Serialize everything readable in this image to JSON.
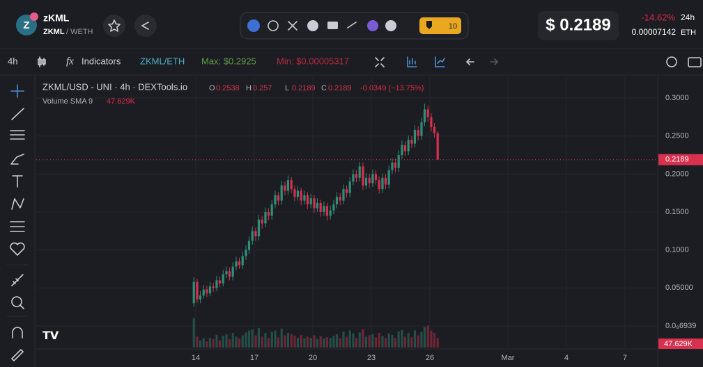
{
  "header": {
    "token": "zKML",
    "pair_base": "ZKML",
    "pair_quote": "/ WETH",
    "badge": "10",
    "price": "$ 0.2189",
    "change": "-14.62%",
    "period": "24h",
    "eth_price": "0.00007142",
    "eth_unit": "ETH"
  },
  "toolbar": {
    "interval": "4h",
    "fx": "fx",
    "indicators": "Indicators",
    "pair": "ZKML/ETH",
    "max": "Max: $0.2925",
    "min": "Min: $0.00005317"
  },
  "chart_data": {
    "type": "candlestick",
    "title": "ZKML/USD - UNI · 4h · DEXTools.io",
    "ohlc_letters": [
      "O",
      "H",
      "L",
      "C"
    ],
    "change_text": "-0.0349 (−13.75%)",
    "volume_label": "Volume SMA 9",
    "volume_sma": "47.629K",
    "up_color": "#2f8f78",
    "down_color": "#d8304f",
    "grid": true,
    "x": [
      -0.1,
      0.07,
      0.23,
      0.4,
      0.57,
      0.73,
      0.9,
      1.07,
      1.23,
      1.4,
      1.57,
      1.73,
      1.9,
      2.07,
      2.23,
      2.4,
      2.57,
      2.73,
      2.9,
      3.07,
      3.23,
      3.4,
      3.57,
      3.73,
      3.9,
      4.07,
      4.23,
      4.4,
      4.57,
      4.73,
      4.9,
      5.07,
      5.23,
      5.4,
      5.57,
      5.73,
      5.9,
      6.07,
      6.23,
      6.4,
      6.57,
      6.73,
      6.9,
      7.07,
      7.23,
      7.4,
      7.57,
      7.73,
      7.9,
      8.07,
      8.23,
      8.4,
      8.57,
      8.73,
      8.9,
      9.07,
      9.23,
      9.4,
      9.57,
      9.73,
      9.9,
      10.07,
      10.23,
      10.4,
      10.57,
      10.73,
      10.9,
      11.07,
      11.23,
      11.4,
      11.57,
      11.73,
      11.9,
      12.07,
      12.23,
      12.4
    ],
    "open": [
      0.03,
      0.058,
      0.035,
      0.04,
      0.048,
      0.043,
      0.052,
      0.05,
      0.06,
      0.056,
      0.068,
      0.072,
      0.065,
      0.078,
      0.085,
      0.08,
      0.092,
      0.1,
      0.112,
      0.125,
      0.118,
      0.14,
      0.135,
      0.15,
      0.145,
      0.16,
      0.172,
      0.165,
      0.185,
      0.178,
      0.192,
      0.18,
      0.17,
      0.178,
      0.165,
      0.172,
      0.16,
      0.168,
      0.155,
      0.162,
      0.15,
      0.158,
      0.145,
      0.152,
      0.16,
      0.17,
      0.165,
      0.18,
      0.175,
      0.19,
      0.2,
      0.195,
      0.21,
      0.185,
      0.195,
      0.188,
      0.2,
      0.192,
      0.18,
      0.195,
      0.186,
      0.205,
      0.215,
      0.208,
      0.225,
      0.238,
      0.23,
      0.245,
      0.24,
      0.258,
      0.25,
      0.268,
      0.285,
      0.275,
      0.262,
      0.2538
    ],
    "high": [
      0.064,
      0.062,
      0.046,
      0.054,
      0.053,
      0.058,
      0.057,
      0.066,
      0.065,
      0.074,
      0.078,
      0.077,
      0.084,
      0.091,
      0.09,
      0.098,
      0.106,
      0.118,
      0.131,
      0.13,
      0.146,
      0.145,
      0.156,
      0.155,
      0.166,
      0.178,
      0.176,
      0.191,
      0.19,
      0.198,
      0.196,
      0.185,
      0.184,
      0.182,
      0.178,
      0.176,
      0.174,
      0.172,
      0.168,
      0.166,
      0.164,
      0.162,
      0.158,
      0.166,
      0.176,
      0.175,
      0.186,
      0.185,
      0.196,
      0.206,
      0.205,
      0.216,
      0.215,
      0.201,
      0.2,
      0.206,
      0.205,
      0.197,
      0.201,
      0.2,
      0.211,
      0.221,
      0.22,
      0.231,
      0.244,
      0.243,
      0.251,
      0.25,
      0.264,
      0.263,
      0.274,
      0.2925,
      0.29,
      0.28,
      0.267,
      0.257
    ],
    "low": [
      0.025,
      0.03,
      0.03,
      0.036,
      0.038,
      0.039,
      0.045,
      0.046,
      0.051,
      0.052,
      0.063,
      0.06,
      0.06,
      0.073,
      0.075,
      0.075,
      0.087,
      0.095,
      0.107,
      0.112,
      0.113,
      0.128,
      0.13,
      0.139,
      0.14,
      0.155,
      0.159,
      0.16,
      0.172,
      0.173,
      0.175,
      0.164,
      0.165,
      0.159,
      0.16,
      0.154,
      0.155,
      0.149,
      0.15,
      0.144,
      0.145,
      0.139,
      0.14,
      0.147,
      0.155,
      0.159,
      0.16,
      0.169,
      0.17,
      0.185,
      0.189,
      0.19,
      0.179,
      0.18,
      0.182,
      0.183,
      0.186,
      0.174,
      0.175,
      0.18,
      0.181,
      0.2,
      0.202,
      0.203,
      0.22,
      0.224,
      0.225,
      0.234,
      0.235,
      0.244,
      0.245,
      0.263,
      0.269,
      0.256,
      0.248,
      0.2189
    ],
    "close": [
      0.058,
      0.035,
      0.04,
      0.048,
      0.043,
      0.052,
      0.05,
      0.06,
      0.056,
      0.068,
      0.072,
      0.065,
      0.078,
      0.085,
      0.08,
      0.092,
      0.1,
      0.112,
      0.125,
      0.118,
      0.14,
      0.135,
      0.15,
      0.145,
      0.16,
      0.172,
      0.165,
      0.185,
      0.178,
      0.192,
      0.18,
      0.17,
      0.178,
      0.165,
      0.172,
      0.16,
      0.168,
      0.155,
      0.162,
      0.15,
      0.158,
      0.145,
      0.152,
      0.16,
      0.17,
      0.165,
      0.18,
      0.175,
      0.19,
      0.2,
      0.195,
      0.21,
      0.185,
      0.195,
      0.188,
      0.2,
      0.192,
      0.18,
      0.195,
      0.186,
      0.205,
      0.215,
      0.208,
      0.225,
      0.238,
      0.23,
      0.245,
      0.24,
      0.258,
      0.25,
      0.268,
      0.285,
      0.275,
      0.262,
      0.2538,
      0.2189
    ],
    "volume": [
      120000,
      45000,
      30000,
      38000,
      25000,
      40000,
      35000,
      52000,
      30000,
      48000,
      55000,
      35000,
      60000,
      45000,
      38000,
      50000,
      62000,
      70000,
      75000,
      50000,
      80000,
      45000,
      60000,
      40000,
      65000,
      70000,
      42000,
      78000,
      50000,
      60000,
      55000,
      48000,
      40000,
      52000,
      38000,
      45000,
      40000,
      50000,
      35000,
      46000,
      38000,
      42000,
      40000,
      48000,
      55000,
      38000,
      65000,
      45000,
      70000,
      58000,
      40000,
      62000,
      75000,
      45000,
      50000,
      55000,
      42000,
      60000,
      48000,
      40000,
      58000,
      52000,
      40000,
      66000,
      72000,
      45000,
      60000,
      42000,
      70000,
      50000,
      65000,
      85000,
      90000,
      70000,
      60000,
      40000
    ],
    "xlim": [
      -8.18,
      23.68
    ],
    "xticks": [
      {
        "value": 0,
        "label": "14"
      },
      {
        "value": 3,
        "label": "17"
      },
      {
        "value": 6,
        "label": "20"
      },
      {
        "value": 9,
        "label": "23"
      },
      {
        "value": 12,
        "label": "26"
      },
      {
        "value": 16,
        "label": "Mar"
      },
      {
        "value": 19,
        "label": "4"
      },
      {
        "value": 22,
        "label": "7"
      }
    ],
    "ylim": [
      -0.0284,
      0.3284
    ],
    "yticks": [
      {
        "value": 0.3,
        "label": "0.3000"
      },
      {
        "value": 0.25,
        "label": "0.2500"
      },
      {
        "value": 0.2,
        "label": "0.2000"
      },
      {
        "value": 0.15,
        "label": "0.1500"
      },
      {
        "value": 0.1,
        "label": "0.1000"
      },
      {
        "value": 0.05,
        "label": "0.05000"
      },
      {
        "value": 6.939e-09,
        "label": "0.0₈6939"
      }
    ]
  }
}
